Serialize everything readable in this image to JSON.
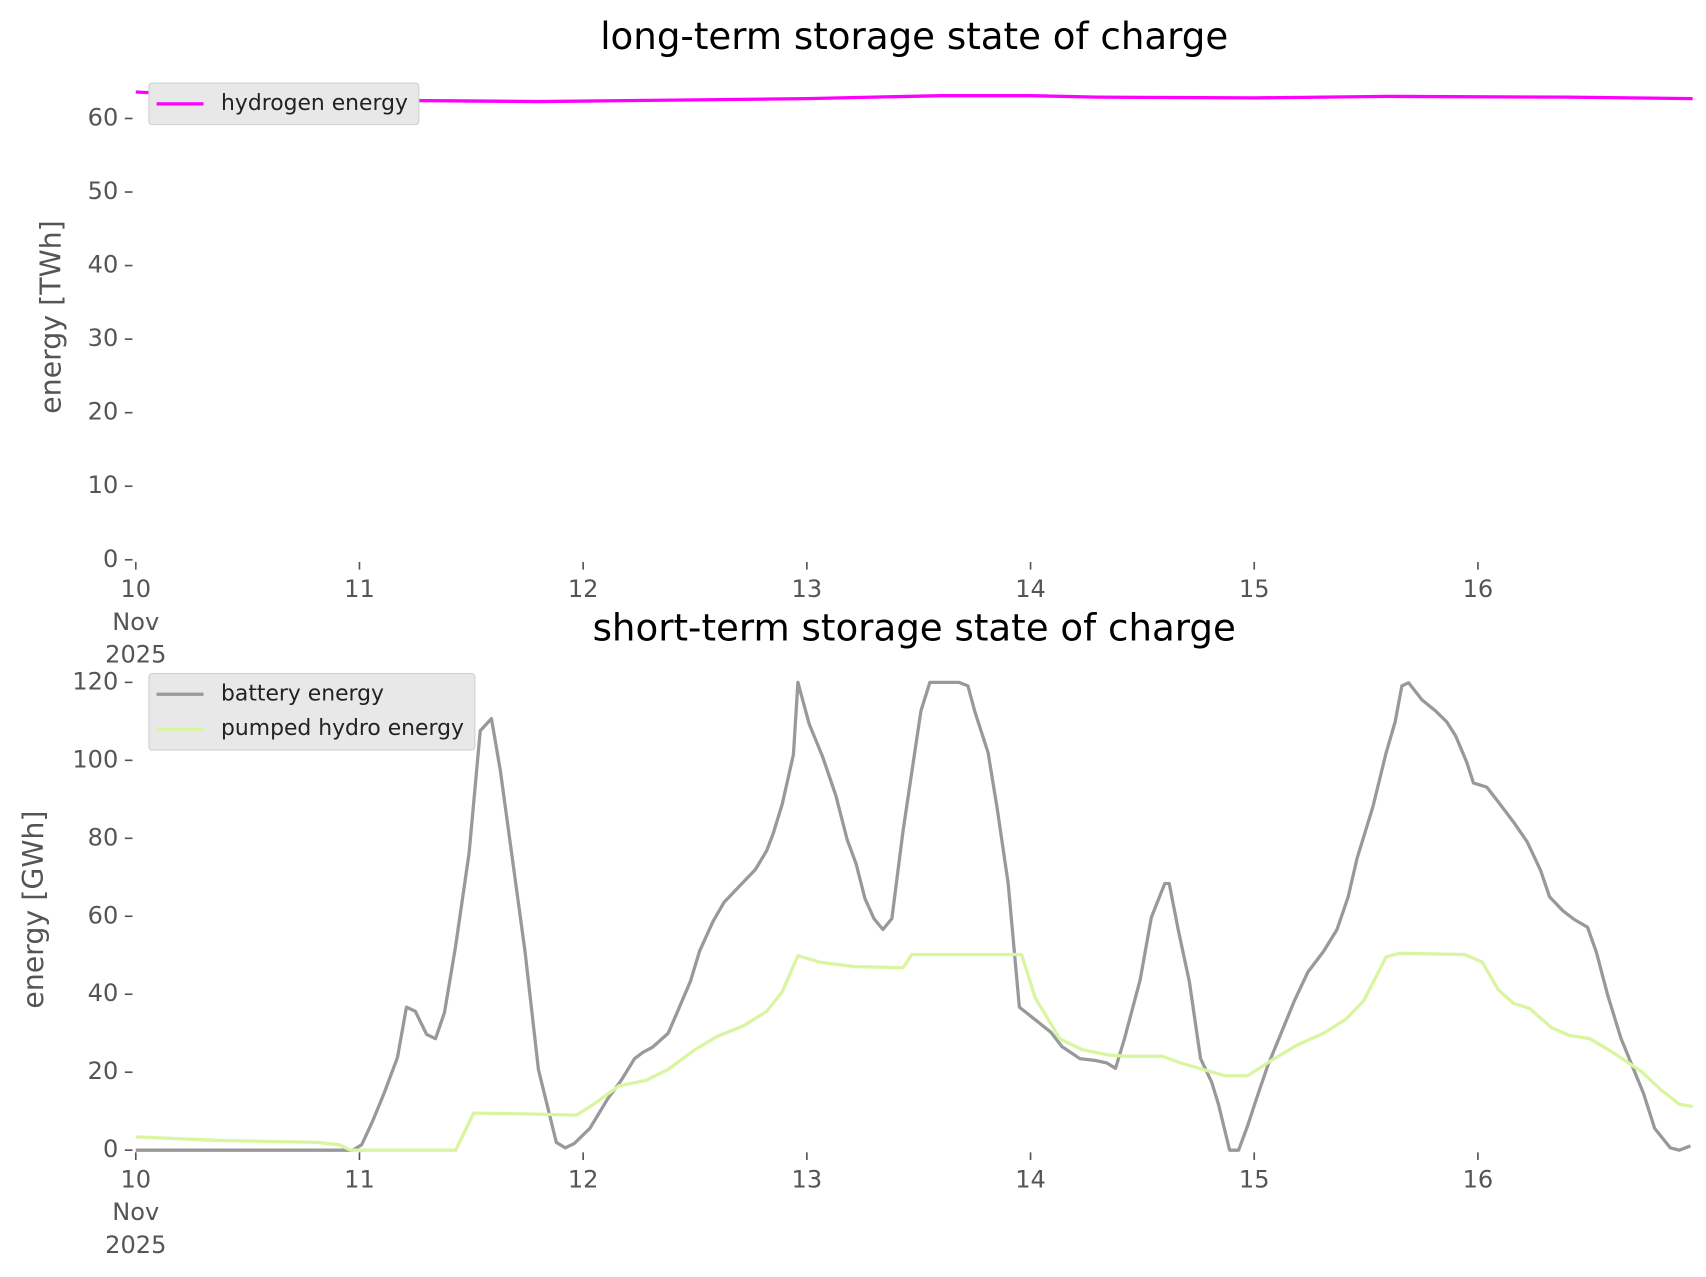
{
  "chart_data": [
    {
      "type": "line",
      "title": "long-term storage state of charge",
      "ylabel": "energy [TWh]",
      "xlim": [
        10,
        16.96
      ],
      "xticks": [
        {
          "value": 10,
          "label": "10\nNov\n2025"
        },
        11,
        12,
        13,
        14,
        15,
        16
      ],
      "ylim": [
        0,
        66
      ],
      "yticks": [
        0,
        10,
        20,
        30,
        40,
        50,
        60
      ],
      "legend": "upper left",
      "series": [
        {
          "name": "hydrogen energy",
          "color": "#ff00ff",
          "x": [
            10,
            10.4,
            10.9,
            11.4,
            11.8,
            12.4,
            13.0,
            13.6,
            14.0,
            14.3,
            15.0,
            15.6,
            16.4,
            16.96
          ],
          "values": [
            63.6,
            63.0,
            62.5,
            62.4,
            62.3,
            62.5,
            62.7,
            63.1,
            63.1,
            62.9,
            62.8,
            63.0,
            62.9,
            62.7
          ]
        }
      ]
    },
    {
      "type": "line",
      "title": "short-term storage state of charge",
      "ylabel": "energy [GWh]",
      "xlim": [
        10,
        16.96
      ],
      "xticks": [
        {
          "value": 10,
          "label": "10\nNov\n2025"
        },
        11,
        12,
        13,
        14,
        15,
        16
      ],
      "ylim": [
        0,
        123.4
      ],
      "yticks": [
        0,
        20,
        40,
        60,
        80,
        100,
        120
      ],
      "legend": "upper left",
      "series": [
        {
          "name": "battery energy",
          "color": "#999999",
          "x": [
            10,
            10.97,
            11.01,
            11.06,
            11.11,
            11.17,
            11.21,
            11.25,
            11.3,
            11.34,
            11.38,
            11.43,
            11.49,
            11.54,
            11.59,
            11.63,
            11.74,
            11.8,
            11.88,
            11.92,
            11.96,
            12.03,
            12.11,
            12.17,
            12.23,
            12.27,
            12.31,
            12.38,
            12.42,
            12.48,
            12.52,
            12.58,
            12.63,
            12.71,
            12.77,
            12.82,
            12.85,
            12.89,
            12.94,
            12.96,
            13.01,
            13.07,
            13.13,
            13.18,
            13.22,
            13.26,
            13.3,
            13.34,
            13.38,
            13.43,
            13.51,
            13.55,
            13.68,
            13.72,
            13.75,
            13.81,
            13.85,
            13.9,
            13.95,
            14.09,
            14.14,
            14.22,
            14.29,
            14.34,
            14.38,
            14.42,
            14.49,
            14.54,
            14.6,
            14.62,
            14.66,
            14.71,
            14.76,
            14.81,
            14.84,
            14.89,
            14.93,
            14.97,
            15.01,
            15.06,
            15.12,
            15.18,
            15.24,
            15.31,
            15.37,
            15.42,
            15.46,
            15.53,
            15.59,
            15.63,
            15.66,
            15.69,
            15.75,
            15.81,
            15.86,
            15.9,
            15.95,
            15.98,
            16.04,
            16.09,
            16.16,
            16.22,
            16.28,
            16.32,
            16.38,
            16.43,
            16.49,
            16.53,
            16.58,
            16.64,
            16.69,
            16.74,
            16.79,
            16.86,
            16.9,
            16.95
          ],
          "values": [
            0,
            0,
            1.4,
            7.6,
            14.6,
            23.8,
            36.7,
            35.6,
            29.7,
            28.6,
            35.3,
            52.4,
            76.2,
            107.6,
            110.7,
            97.3,
            51.0,
            20.7,
            2.0,
            0.6,
            1.7,
            5.6,
            13.2,
            17.9,
            23.5,
            25.2,
            26.4,
            30.0,
            35.3,
            43.4,
            51.0,
            58.6,
            63.6,
            68.4,
            72.0,
            76.8,
            81.3,
            88.8,
            101.5,
            120.0,
            109.4,
            101.0,
            90.9,
            79.7,
            73.5,
            64.5,
            59.4,
            56.6,
            59.4,
            81.9,
            112.7,
            120.0,
            120.0,
            119.1,
            112.7,
            102.0,
            88.0,
            68.4,
            36.7,
            30.3,
            26.6,
            23.5,
            23.0,
            22.4,
            21.0,
            28.6,
            43.7,
            59.7,
            68.4,
            68.4,
            56.6,
            43.2,
            23.5,
            17.4,
            11.8,
            0,
            0,
            6.2,
            13.2,
            21.6,
            30.0,
            38.4,
            45.7,
            51.0,
            56.6,
            65.0,
            74.9,
            88.0,
            102.0,
            109.9,
            119.1,
            119.9,
            115.5,
            112.7,
            109.9,
            106.3,
            99.5,
            94.2,
            93.1,
            89.4,
            84.1,
            79.1,
            71.8,
            65.0,
            61.4,
            59.2,
            57.2,
            50.7,
            39.8,
            28.6,
            21.6,
            14.6,
            5.6,
            0.6,
            0,
            1.1
          ]
        },
        {
          "name": "pumped hydro energy",
          "color": "#d9f5a0",
          "x": [
            10,
            10.37,
            10.81,
            10.91,
            10.96,
            11.43,
            11.51,
            11.74,
            11.97,
            12.06,
            12.16,
            12.28,
            12.38,
            12.5,
            12.6,
            12.72,
            12.82,
            12.89,
            12.96,
            13.06,
            13.21,
            13.43,
            13.47,
            13.96,
            14.02,
            14.13,
            14.23,
            14.35,
            14.43,
            14.59,
            14.67,
            14.77,
            14.87,
            14.97,
            15.09,
            15.19,
            15.31,
            15.41,
            15.49,
            15.59,
            15.65,
            15.94,
            16.02,
            16.09,
            16.16,
            16.23,
            16.33,
            16.41,
            16.5,
            16.6,
            16.73,
            16.82,
            16.9,
            16.96
          ],
          "values": [
            3.4,
            2.5,
            2.0,
            1.4,
            0,
            0,
            9.5,
            9.3,
            9.0,
            12.3,
            16.5,
            17.9,
            20.7,
            25.8,
            29.2,
            32.0,
            35.6,
            40.6,
            49.9,
            48.2,
            47.1,
            46.8,
            50.2,
            50.2,
            39.2,
            28.6,
            25.8,
            24.4,
            24.1,
            24.1,
            22.4,
            20.7,
            19.1,
            19.1,
            23.5,
            26.9,
            30.0,
            33.6,
            38.4,
            49.6,
            50.5,
            50.2,
            48.2,
            41.2,
            37.6,
            36.4,
            31.4,
            29.4,
            28.6,
            25.2,
            20.2,
            15.4,
            11.8,
            11.2
          ]
        }
      ]
    }
  ]
}
